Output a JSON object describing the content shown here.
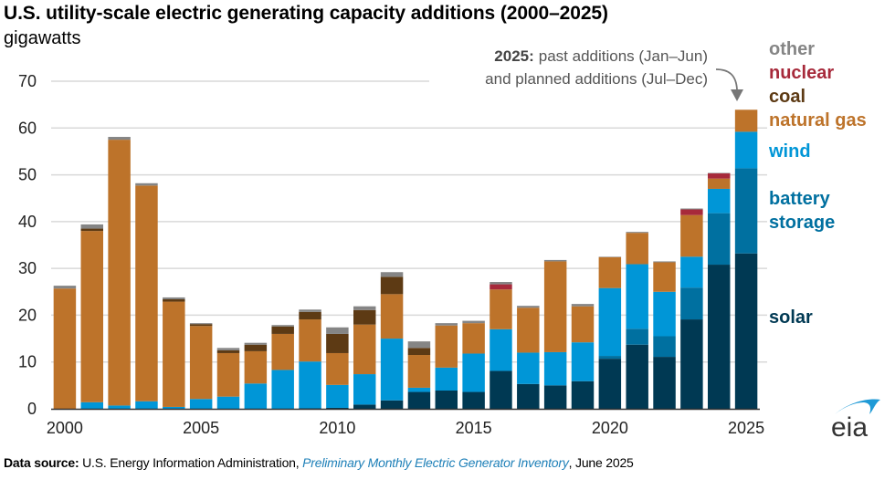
{
  "header": {
    "title": "U.S. utility-scale electric generating capacity additions (2000–2025)",
    "units": "gigawatts"
  },
  "annotation": {
    "bold": "2025:",
    "line1": "past additions (Jan–Jun)",
    "line2": "and planned additions (Jul–Dec)"
  },
  "footer": {
    "source_label": "Data source:",
    "source_text": "U.S. Energy Information Administration,",
    "source_link": "Preliminary Monthly Electric Generator Inventory",
    "source_date": ", June 2025"
  },
  "logo": {
    "text": "eia"
  },
  "chart_data": {
    "type": "bar",
    "stacked": true,
    "title": "U.S. utility-scale electric generating capacity additions (2000–2025)",
    "ylabel": "gigawatts",
    "xlabel": "",
    "ylim": [
      0,
      70
    ],
    "yticks": [
      0,
      10,
      20,
      30,
      40,
      50,
      60,
      70
    ],
    "xtick_labels": [
      "2000",
      "2005",
      "2010",
      "2015",
      "2020",
      "2025"
    ],
    "grid": true,
    "legend_position": "right",
    "categories": [
      "2000",
      "2001",
      "2002",
      "2003",
      "2004",
      "2005",
      "2006",
      "2007",
      "2008",
      "2009",
      "2010",
      "2011",
      "2012",
      "2013",
      "2014",
      "2015",
      "2016",
      "2017",
      "2018",
      "2019",
      "2020",
      "2021",
      "2022",
      "2023",
      "2024",
      "2025"
    ],
    "series": [
      {
        "name": "solar",
        "color": "#003953",
        "values": [
          0,
          0,
          0,
          0,
          0,
          0,
          0,
          0,
          0,
          0.1,
          0.2,
          0.9,
          1.8,
          3.6,
          3.9,
          3.6,
          8.1,
          5.3,
          5.0,
          5.9,
          10.7,
          13.7,
          11.1,
          19.1,
          30.8,
          33.2
        ]
      },
      {
        "name": "battery storage",
        "color": "#0070a0",
        "values": [
          0,
          0,
          0,
          0,
          0,
          0,
          0,
          0,
          0,
          0,
          0,
          0,
          0,
          0,
          0,
          0,
          0,
          0,
          0,
          0,
          0.6,
          3.4,
          4.4,
          6.8,
          11.0,
          18.2
        ]
      },
      {
        "name": "wind",
        "color": "#0096d7",
        "values": [
          0,
          1.4,
          0.7,
          1.6,
          0.4,
          2.1,
          2.6,
          5.4,
          8.3,
          10.0,
          4.9,
          6.5,
          13.2,
          0.9,
          4.9,
          8.2,
          8.9,
          6.7,
          7.1,
          8.3,
          14.5,
          13.8,
          9.5,
          6.6,
          5.2,
          7.8
        ]
      },
      {
        "name": "natural gas",
        "color": "#bd732a",
        "values": [
          25.7,
          36.6,
          56.8,
          46.1,
          22.5,
          15.6,
          9.3,
          6.9,
          7.7,
          9.0,
          6.8,
          10.6,
          9.5,
          7.0,
          9.0,
          6.5,
          8.5,
          9.6,
          19.4,
          7.7,
          6.6,
          6.7,
          6.3,
          8.9,
          2.2,
          4.7
        ]
      },
      {
        "name": "coal",
        "color": "#5d3a14",
        "values": [
          0,
          0.5,
          0,
          0,
          0.5,
          0.4,
          0.6,
          1.4,
          1.6,
          1.6,
          4.1,
          3.1,
          3.7,
          1.5,
          0,
          0,
          0,
          0,
          0,
          0,
          0,
          0,
          0,
          0,
          0,
          0
        ]
      },
      {
        "name": "nuclear",
        "color": "#a72a3b",
        "values": [
          0,
          0,
          0,
          0,
          0,
          0,
          0,
          0,
          0,
          0,
          0,
          0,
          0,
          0,
          0,
          0,
          1.1,
          0,
          0,
          0,
          0,
          0,
          0,
          1.2,
          1.1,
          0
        ]
      },
      {
        "name": "other",
        "color": "#858585",
        "values": [
          0.6,
          0.9,
          0.6,
          0.5,
          0.4,
          0.2,
          0.5,
          0.4,
          0.3,
          0.5,
          1.4,
          0.8,
          1.0,
          1.4,
          0.5,
          0.5,
          0.5,
          0.4,
          0.3,
          0.5,
          0.1,
          0.2,
          0.2,
          0.2,
          0.1,
          0
        ]
      }
    ],
    "legend": [
      {
        "label": "other",
        "color": "#858585"
      },
      {
        "label": "nuclear",
        "color": "#a72a3b"
      },
      {
        "label": "coal",
        "color": "#5d3a14"
      },
      {
        "label": "natural gas",
        "color": "#bd732a"
      },
      {
        "label": "wind",
        "color": "#0096d7"
      },
      {
        "label": "battery storage",
        "color": "#0070a0"
      },
      {
        "label": "solar",
        "color": "#003953"
      }
    ]
  }
}
